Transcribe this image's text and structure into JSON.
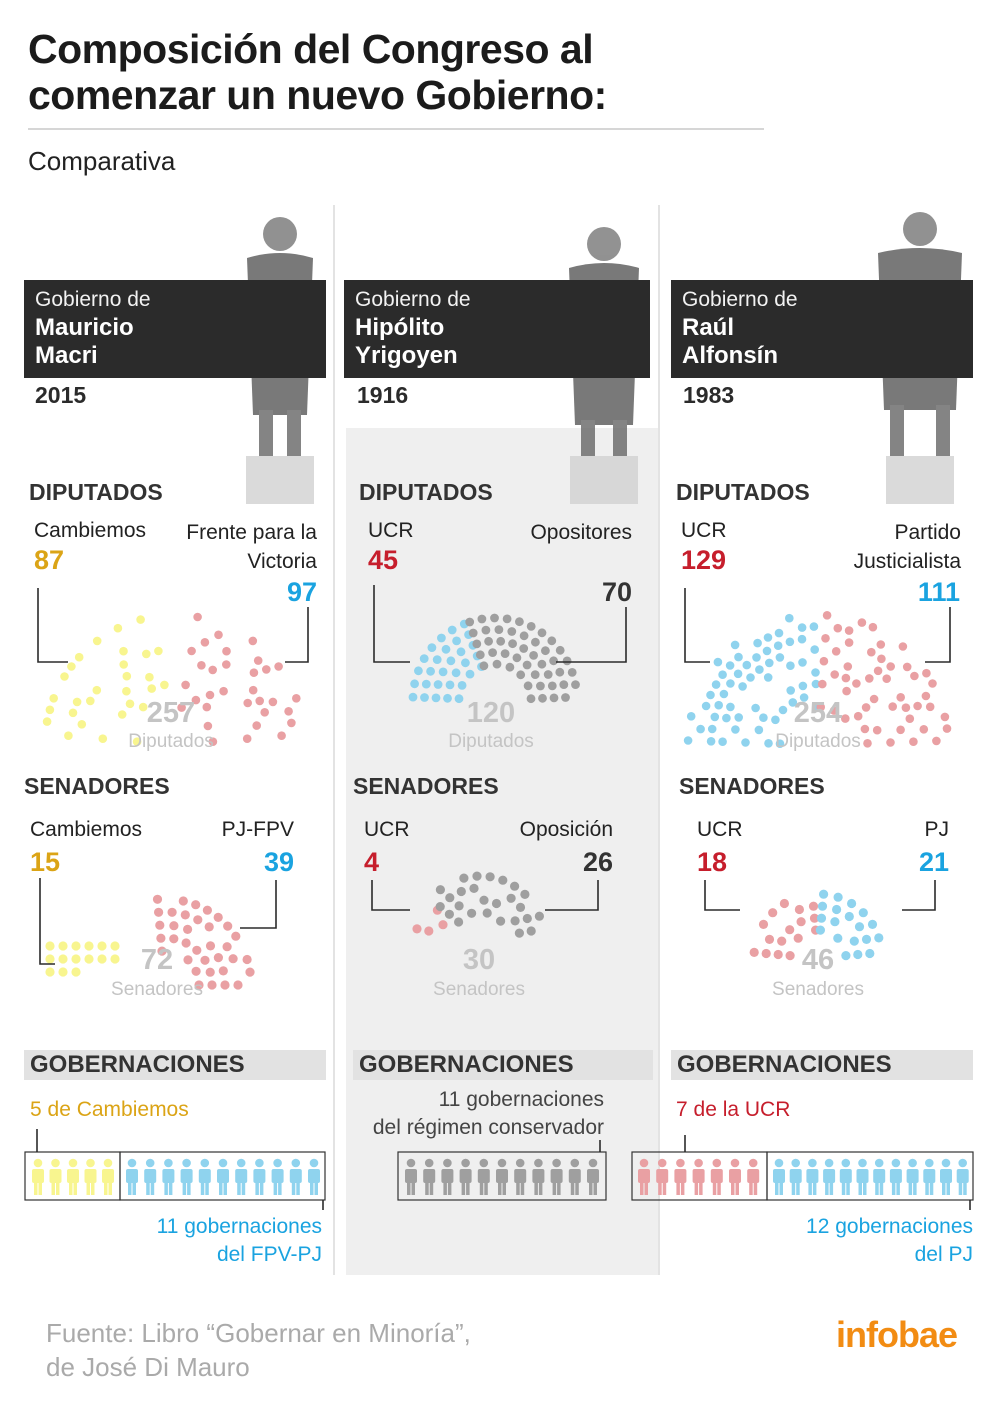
{
  "title": "Composición del Congreso al comenzar un nuevo Gobierno:",
  "subtitle": "Comparativa",
  "colors": {
    "yellow": "#f8f58f",
    "yellow_text": "#dba416",
    "red": "#e9a0a3",
    "red_text": "#c61e2c",
    "blue": "#8fd3ee",
    "blue_text": "#1aa3e0",
    "gray": "#9f9f9f",
    "gray_text": "#333333",
    "total": "#c4c4c4"
  },
  "labels": {
    "diputados": "DIPUTADOS",
    "senadores": "SENADORES",
    "gobernaciones": "GOBERNACIONES",
    "diputados_unit": "Diputados",
    "senadores_unit": "Senadores"
  },
  "governments": [
    {
      "prefix": "Gobierno de",
      "name": "Mauricio\nMacri",
      "year": "2015"
    },
    {
      "prefix": "Gobierno de",
      "name": "Hipólito\nYrigoyen",
      "year": "1916"
    },
    {
      "prefix": "Gobierno de",
      "name": "Raúl\nAlfonsín",
      "year": "1983"
    }
  ],
  "gobernaciones": {
    "macri_top": "5 de Cambiemos",
    "macri_bottom": "11 gobernaciones\ndel FPV-PJ",
    "yrigoyen_top": "11 gobernaciones\ndel régimen conservador",
    "alfonsin_top": "7 de la UCR",
    "alfonsin_bottom": "12 gobernaciones\ndel PJ"
  },
  "source": "Fuente: Libro “Gobernar en Minoría”,\nde José Di Mauro",
  "logo": "infobae",
  "chart_data": [
    {
      "type": "parliament",
      "chamber": "DIPUTADOS",
      "government": "Mauricio Macri",
      "year": "2015",
      "total": 257,
      "series": [
        {
          "name": "Cambiemos",
          "value": 87,
          "color": "yellow"
        },
        {
          "name": "Frente para la Victoria",
          "value": 97,
          "color": "red"
        }
      ]
    },
    {
      "type": "parliament",
      "chamber": "DIPUTADOS",
      "government": "Hipólito Yrigoyen",
      "year": "1916",
      "total": 120,
      "series": [
        {
          "name": "UCR",
          "value": 45,
          "color": "blue"
        },
        {
          "name": "Opositores",
          "value": 70,
          "color": "gray"
        }
      ]
    },
    {
      "type": "parliament",
      "chamber": "DIPUTADOS",
      "government": "Raúl Alfonsín",
      "year": "1983",
      "total": 254,
      "series": [
        {
          "name": "UCR",
          "value": 129,
          "color": "blue"
        },
        {
          "name": "Partido Justicialista",
          "value": 111,
          "color": "red"
        }
      ]
    },
    {
      "type": "parliament",
      "chamber": "SENADORES",
      "government": "Mauricio Macri",
      "year": "2015",
      "total": 72,
      "series": [
        {
          "name": "Cambiemos",
          "value": 15,
          "color": "yellow"
        },
        {
          "name": "PJ-FPV",
          "value": 39,
          "color": "red"
        }
      ]
    },
    {
      "type": "parliament",
      "chamber": "SENADORES",
      "government": "Hipólito Yrigoyen",
      "year": "1916",
      "total": 30,
      "series": [
        {
          "name": "UCR",
          "value": 4,
          "color": "red"
        },
        {
          "name": "Oposición",
          "value": 26,
          "color": "gray"
        }
      ]
    },
    {
      "type": "parliament",
      "chamber": "SENADORES",
      "government": "Raúl Alfonsín",
      "year": "1983",
      "total": 46,
      "series": [
        {
          "name": "UCR",
          "value": 18,
          "color": "red"
        },
        {
          "name": "PJ",
          "value": 21,
          "color": "blue"
        }
      ]
    },
    {
      "type": "pictogram",
      "chamber": "GOBERNACIONES",
      "government": "Mauricio Macri",
      "series": [
        {
          "name": "Cambiemos",
          "value": 5,
          "color": "yellow"
        },
        {
          "name": "FPV-PJ",
          "value": 11,
          "color": "blue"
        }
      ]
    },
    {
      "type": "pictogram",
      "chamber": "GOBERNACIONES",
      "government": "Hipólito Yrigoyen",
      "series": [
        {
          "name": "régimen conservador",
          "value": 11,
          "color": "gray"
        }
      ]
    },
    {
      "type": "pictogram",
      "chamber": "GOBERNACIONES",
      "government": "Raúl Alfonsín",
      "series": [
        {
          "name": "UCR",
          "value": 7,
          "color": "red"
        },
        {
          "name": "PJ",
          "value": 12,
          "color": "blue"
        }
      ]
    }
  ]
}
